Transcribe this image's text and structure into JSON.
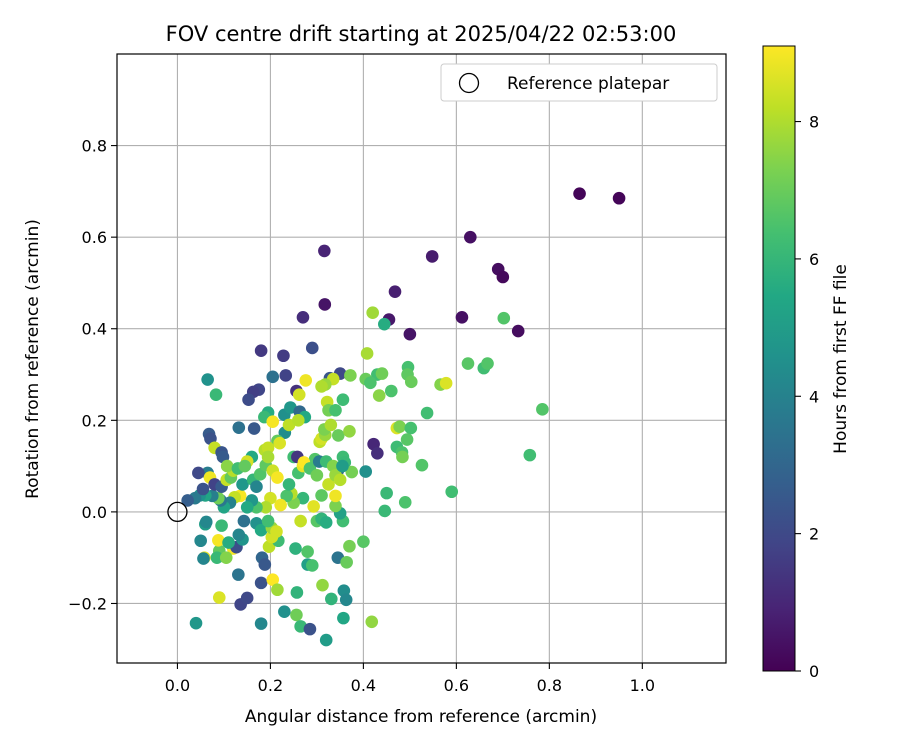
{
  "chart_data": {
    "type": "scatter",
    "title": "FOV centre drift starting at 2025/04/22 02:53:00",
    "xlabel": "Angular distance from reference (arcmin)",
    "ylabel": "Rotation from reference (arcmin)",
    "xlim": [
      -0.13,
      1.18
    ],
    "ylim": [
      -0.33,
      1.0
    ],
    "xticks": [
      0.0,
      0.2,
      0.4,
      0.6,
      0.8,
      1.0
    ],
    "yticks": [
      -0.2,
      0.0,
      0.2,
      0.4,
      0.6,
      0.8
    ],
    "xtick_labels": [
      "0.0",
      "0.2",
      "0.4",
      "0.6",
      "0.8",
      "1.0"
    ],
    "ytick_labels": [
      "−0.2",
      "0.0",
      "0.2",
      "0.4",
      "0.6",
      "0.8"
    ],
    "grid": true,
    "legend": {
      "entries": [
        "Reference platepar"
      ],
      "placement": "top-right"
    },
    "reference_point": {
      "x": 0.0,
      "y": 0.0,
      "label": "Reference platepar"
    },
    "colorbar": {
      "label": "Hours from first FF file",
      "colormap": "viridis",
      "range": [
        0,
        9.1
      ],
      "ticks": [
        0,
        2,
        4,
        6,
        8
      ],
      "tick_labels": [
        "0",
        "2",
        "4",
        "6",
        "8"
      ]
    },
    "points": [
      {
        "x": 0.95,
        "y": 0.685,
        "c": 0.1
      },
      {
        "x": 0.865,
        "y": 0.695,
        "c": 0.1
      },
      {
        "x": 0.63,
        "y": 0.6,
        "c": 0.4
      },
      {
        "x": 0.548,
        "y": 0.558,
        "c": 0.7
      },
      {
        "x": 0.316,
        "y": 0.57,
        "c": 0.9
      },
      {
        "x": 0.69,
        "y": 0.53,
        "c": 0.3
      },
      {
        "x": 0.7,
        "y": 0.513,
        "c": 0.2
      },
      {
        "x": 0.468,
        "y": 0.481,
        "c": 0.8
      },
      {
        "x": 0.317,
        "y": 0.453,
        "c": 0.5
      },
      {
        "x": 0.612,
        "y": 0.425,
        "c": 0.4
      },
      {
        "x": 0.733,
        "y": 0.395,
        "c": 0.3
      },
      {
        "x": 0.5,
        "y": 0.388,
        "c": 0.5
      },
      {
        "x": 0.27,
        "y": 0.425,
        "c": 1.2
      },
      {
        "x": 0.455,
        "y": 0.42,
        "c": 0.6
      },
      {
        "x": 0.42,
        "y": 0.435,
        "c": 7.8
      },
      {
        "x": 0.445,
        "y": 0.41,
        "c": 5.6
      },
      {
        "x": 0.702,
        "y": 0.423,
        "c": 6.6
      },
      {
        "x": 0.18,
        "y": 0.352,
        "c": 1.5
      },
      {
        "x": 0.228,
        "y": 0.341,
        "c": 1.6
      },
      {
        "x": 0.29,
        "y": 0.358,
        "c": 2.2
      },
      {
        "x": 0.35,
        "y": 0.302,
        "c": 2.0
      },
      {
        "x": 0.328,
        "y": 0.292,
        "c": 2.4
      },
      {
        "x": 0.205,
        "y": 0.295,
        "c": 3.4
      },
      {
        "x": 0.233,
        "y": 0.298,
        "c": 1.8
      },
      {
        "x": 0.175,
        "y": 0.267,
        "c": 1.9
      },
      {
        "x": 0.163,
        "y": 0.262,
        "c": 1.7
      },
      {
        "x": 0.153,
        "y": 0.245,
        "c": 2.1
      },
      {
        "x": 0.065,
        "y": 0.289,
        "c": 4.6
      },
      {
        "x": 0.083,
        "y": 0.256,
        "c": 6.1
      },
      {
        "x": 0.256,
        "y": 0.264,
        "c": 1.3
      },
      {
        "x": 0.262,
        "y": 0.256,
        "c": 8.5
      },
      {
        "x": 0.276,
        "y": 0.287,
        "c": 8.9
      },
      {
        "x": 0.335,
        "y": 0.29,
        "c": 8.3
      },
      {
        "x": 0.318,
        "y": 0.278,
        "c": 7.7
      },
      {
        "x": 0.31,
        "y": 0.274,
        "c": 8.0
      },
      {
        "x": 0.322,
        "y": 0.24,
        "c": 8.3
      },
      {
        "x": 0.325,
        "y": 0.222,
        "c": 7.2
      },
      {
        "x": 0.408,
        "y": 0.346,
        "c": 7.9
      },
      {
        "x": 0.496,
        "y": 0.316,
        "c": 6.4
      },
      {
        "x": 0.495,
        "y": 0.3,
        "c": 6.8
      },
      {
        "x": 0.372,
        "y": 0.298,
        "c": 7.3
      },
      {
        "x": 0.405,
        "y": 0.29,
        "c": 7.0
      },
      {
        "x": 0.43,
        "y": 0.3,
        "c": 6.3
      },
      {
        "x": 0.44,
        "y": 0.302,
        "c": 7.1
      },
      {
        "x": 0.415,
        "y": 0.282,
        "c": 6.5
      },
      {
        "x": 0.503,
        "y": 0.284,
        "c": 7.0
      },
      {
        "x": 0.46,
        "y": 0.264,
        "c": 6.5
      },
      {
        "x": 0.434,
        "y": 0.254,
        "c": 7.5
      },
      {
        "x": 0.566,
        "y": 0.278,
        "c": 7.4
      },
      {
        "x": 0.578,
        "y": 0.281,
        "c": 8.6
      },
      {
        "x": 0.625,
        "y": 0.324,
        "c": 6.7
      },
      {
        "x": 0.659,
        "y": 0.314,
        "c": 6.3
      },
      {
        "x": 0.667,
        "y": 0.324,
        "c": 6.6
      },
      {
        "x": 0.785,
        "y": 0.224,
        "c": 6.6
      },
      {
        "x": 0.537,
        "y": 0.216,
        "c": 6.3
      },
      {
        "x": 0.356,
        "y": 0.245,
        "c": 6.2
      },
      {
        "x": 0.34,
        "y": 0.222,
        "c": 6.4
      },
      {
        "x": 0.195,
        "y": 0.217,
        "c": 5.6
      },
      {
        "x": 0.187,
        "y": 0.207,
        "c": 6.1
      },
      {
        "x": 0.23,
        "y": 0.212,
        "c": 4.5
      },
      {
        "x": 0.243,
        "y": 0.228,
        "c": 4.8
      },
      {
        "x": 0.263,
        "y": 0.219,
        "c": 3.1
      },
      {
        "x": 0.274,
        "y": 0.207,
        "c": 5.5
      },
      {
        "x": 0.205,
        "y": 0.197,
        "c": 9.0
      },
      {
        "x": 0.231,
        "y": 0.173,
        "c": 4.4
      },
      {
        "x": 0.165,
        "y": 0.182,
        "c": 2.5
      },
      {
        "x": 0.132,
        "y": 0.184,
        "c": 3.4
      },
      {
        "x": 0.068,
        "y": 0.17,
        "c": 2.6
      },
      {
        "x": 0.071,
        "y": 0.16,
        "c": 2.3
      },
      {
        "x": 0.08,
        "y": 0.14,
        "c": 8.3
      },
      {
        "x": 0.095,
        "y": 0.13,
        "c": 2.4
      },
      {
        "x": 0.098,
        "y": 0.12,
        "c": 2.6
      },
      {
        "x": 0.188,
        "y": 0.135,
        "c": 8.1
      },
      {
        "x": 0.215,
        "y": 0.155,
        "c": 6.9
      },
      {
        "x": 0.195,
        "y": 0.14,
        "c": 8.3
      },
      {
        "x": 0.25,
        "y": 0.12,
        "c": 6.3
      },
      {
        "x": 0.258,
        "y": 0.12,
        "c": 1.4
      },
      {
        "x": 0.296,
        "y": 0.115,
        "c": 6.6
      },
      {
        "x": 0.306,
        "y": 0.153,
        "c": 8.2
      },
      {
        "x": 0.31,
        "y": 0.16,
        "c": 8.5
      },
      {
        "x": 0.318,
        "y": 0.168,
        "c": 7.7
      },
      {
        "x": 0.316,
        "y": 0.18,
        "c": 7.3
      },
      {
        "x": 0.33,
        "y": 0.19,
        "c": 8.0
      },
      {
        "x": 0.346,
        "y": 0.167,
        "c": 7.0
      },
      {
        "x": 0.37,
        "y": 0.176,
        "c": 7.6
      },
      {
        "x": 0.356,
        "y": 0.12,
        "c": 6.2
      },
      {
        "x": 0.36,
        "y": 0.108,
        "c": 6.1
      },
      {
        "x": 0.345,
        "y": 0.09,
        "c": 3.1
      },
      {
        "x": 0.375,
        "y": 0.087,
        "c": 7.2
      },
      {
        "x": 0.405,
        "y": 0.088,
        "c": 4.5
      },
      {
        "x": 0.422,
        "y": 0.148,
        "c": 1.0
      },
      {
        "x": 0.43,
        "y": 0.128,
        "c": 1.2
      },
      {
        "x": 0.472,
        "y": 0.183,
        "c": 8.6
      },
      {
        "x": 0.478,
        "y": 0.186,
        "c": 7.3
      },
      {
        "x": 0.502,
        "y": 0.183,
        "c": 6.4
      },
      {
        "x": 0.494,
        "y": 0.158,
        "c": 6.7
      },
      {
        "x": 0.472,
        "y": 0.142,
        "c": 6.2
      },
      {
        "x": 0.483,
        "y": 0.13,
        "c": 6.5
      },
      {
        "x": 0.484,
        "y": 0.12,
        "c": 7.2
      },
      {
        "x": 0.526,
        "y": 0.102,
        "c": 6.6
      },
      {
        "x": 0.758,
        "y": 0.124,
        "c": 6.3
      },
      {
        "x": 0.59,
        "y": 0.044,
        "c": 6.3
      },
      {
        "x": 0.49,
        "y": 0.021,
        "c": 6.5
      },
      {
        "x": 0.45,
        "y": 0.041,
        "c": 6.1
      },
      {
        "x": 0.446,
        "y": 0.002,
        "c": 6.1
      },
      {
        "x": 0.4,
        "y": -0.065,
        "c": 6.7
      },
      {
        "x": 0.37,
        "y": -0.075,
        "c": 7.2
      },
      {
        "x": 0.345,
        "y": -0.1,
        "c": 3.5
      },
      {
        "x": 0.364,
        "y": -0.11,
        "c": 7.0
      },
      {
        "x": 0.358,
        "y": -0.172,
        "c": 4.4
      },
      {
        "x": 0.363,
        "y": -0.192,
        "c": 4.2
      },
      {
        "x": 0.331,
        "y": -0.19,
        "c": 5.9
      },
      {
        "x": 0.312,
        "y": -0.16,
        "c": 7.6
      },
      {
        "x": 0.28,
        "y": -0.115,
        "c": 5.1
      },
      {
        "x": 0.29,
        "y": -0.117,
        "c": 6.4
      },
      {
        "x": 0.28,
        "y": -0.087,
        "c": 6.6
      },
      {
        "x": 0.254,
        "y": -0.08,
        "c": 5.8
      },
      {
        "x": 0.257,
        "y": -0.176,
        "c": 5.9
      },
      {
        "x": 0.23,
        "y": -0.218,
        "c": 4.5
      },
      {
        "x": 0.256,
        "y": -0.225,
        "c": 7.1
      },
      {
        "x": 0.265,
        "y": -0.25,
        "c": 6.1
      },
      {
        "x": 0.285,
        "y": -0.256,
        "c": 2.3
      },
      {
        "x": 0.32,
        "y": -0.28,
        "c": 5.0
      },
      {
        "x": 0.357,
        "y": -0.232,
        "c": 5.4
      },
      {
        "x": 0.418,
        "y": -0.24,
        "c": 7.6
      },
      {
        "x": 0.04,
        "y": -0.243,
        "c": 4.8
      },
      {
        "x": 0.18,
        "y": -0.244,
        "c": 4.2
      },
      {
        "x": 0.136,
        "y": -0.202,
        "c": 1.9
      },
      {
        "x": 0.15,
        "y": -0.188,
        "c": 2.0
      },
      {
        "x": 0.09,
        "y": -0.187,
        "c": 8.6
      },
      {
        "x": 0.18,
        "y": -0.155,
        "c": 2.3
      },
      {
        "x": 0.205,
        "y": -0.148,
        "c": 9.1
      },
      {
        "x": 0.215,
        "y": -0.17,
        "c": 7.8
      },
      {
        "x": 0.131,
        "y": -0.137,
        "c": 3.5
      },
      {
        "x": 0.058,
        "y": -0.1,
        "c": 8.8
      },
      {
        "x": 0.056,
        "y": -0.102,
        "c": 4.1
      },
      {
        "x": 0.12,
        "y": -0.08,
        "c": 9.0
      },
      {
        "x": 0.127,
        "y": -0.077,
        "c": 2.2
      },
      {
        "x": 0.182,
        "y": -0.1,
        "c": 3.0
      },
      {
        "x": 0.188,
        "y": -0.115,
        "c": 2.5
      },
      {
        "x": 0.197,
        "y": -0.076,
        "c": 8.2
      },
      {
        "x": 0.217,
        "y": -0.063,
        "c": 6.2
      },
      {
        "x": 0.203,
        "y": -0.055,
        "c": 8.5
      },
      {
        "x": 0.09,
        "y": -0.085,
        "c": 6.9
      },
      {
        "x": 0.085,
        "y": -0.1,
        "c": 6.1
      },
      {
        "x": 0.105,
        "y": -0.1,
        "c": 7.4
      },
      {
        "x": 0.05,
        "y": -0.063,
        "c": 4.2
      },
      {
        "x": 0.088,
        "y": -0.062,
        "c": 9.0
      },
      {
        "x": 0.11,
        "y": -0.067,
        "c": 5.6
      },
      {
        "x": 0.14,
        "y": -0.06,
        "c": 4.7
      },
      {
        "x": 0.06,
        "y": -0.027,
        "c": 5.0
      },
      {
        "x": 0.062,
        "y": -0.022,
        "c": 4.2
      },
      {
        "x": 0.095,
        "y": -0.03,
        "c": 6.1
      },
      {
        "x": 0.132,
        "y": -0.05,
        "c": 4.1
      },
      {
        "x": 0.143,
        "y": -0.02,
        "c": 3.4
      },
      {
        "x": 0.17,
        "y": -0.025,
        "c": 4.6
      },
      {
        "x": 0.18,
        "y": -0.04,
        "c": 5.5
      },
      {
        "x": 0.203,
        "y": -0.035,
        "c": 7.7
      },
      {
        "x": 0.213,
        "y": -0.043,
        "c": 8.5
      },
      {
        "x": 0.195,
        "y": -0.02,
        "c": 6.3
      },
      {
        "x": 0.265,
        "y": -0.02,
        "c": 8.3
      },
      {
        "x": 0.3,
        "y": -0.02,
        "c": 6.7
      },
      {
        "x": 0.31,
        "y": -0.015,
        "c": 5.9
      },
      {
        "x": 0.32,
        "y": -0.023,
        "c": 5.6
      },
      {
        "x": 0.356,
        "y": -0.02,
        "c": 6.3
      },
      {
        "x": 0.35,
        "y": -0.003,
        "c": 5.2
      },
      {
        "x": 0.34,
        "y": 0.013,
        "c": 7.3
      },
      {
        "x": 0.31,
        "y": 0.036,
        "c": 6.8
      },
      {
        "x": 0.325,
        "y": 0.06,
        "c": 8.3
      },
      {
        "x": 0.34,
        "y": 0.035,
        "c": 8.9
      },
      {
        "x": 0.293,
        "y": 0.012,
        "c": 8.7
      },
      {
        "x": 0.27,
        "y": 0.03,
        "c": 6.0
      },
      {
        "x": 0.25,
        "y": 0.02,
        "c": 7.3
      },
      {
        "x": 0.245,
        "y": 0.04,
        "c": 8.1
      },
      {
        "x": 0.235,
        "y": 0.035,
        "c": 6.5
      },
      {
        "x": 0.222,
        "y": 0.015,
        "c": 8.9
      },
      {
        "x": 0.2,
        "y": 0.03,
        "c": 8.5
      },
      {
        "x": 0.19,
        "y": 0.01,
        "c": 8.0
      },
      {
        "x": 0.17,
        "y": 0.01,
        "c": 6.5
      },
      {
        "x": 0.16,
        "y": 0.025,
        "c": 4.8
      },
      {
        "x": 0.15,
        "y": 0.01,
        "c": 5.5
      },
      {
        "x": 0.135,
        "y": 0.035,
        "c": 9.0
      },
      {
        "x": 0.123,
        "y": 0.032,
        "c": 8.3
      },
      {
        "x": 0.113,
        "y": 0.02,
        "c": 4.0
      },
      {
        "x": 0.1,
        "y": 0.01,
        "c": 5.3
      },
      {
        "x": 0.093,
        "y": 0.025,
        "c": 3.6
      },
      {
        "x": 0.088,
        "y": 0.03,
        "c": 7.1
      },
      {
        "x": 0.075,
        "y": 0.035,
        "c": 3.9
      },
      {
        "x": 0.06,
        "y": 0.036,
        "c": 5.3
      },
      {
        "x": 0.048,
        "y": 0.036,
        "c": 4.6
      },
      {
        "x": 0.038,
        "y": 0.03,
        "c": 3.7
      },
      {
        "x": 0.022,
        "y": 0.025,
        "c": 2.7
      },
      {
        "x": 0.055,
        "y": 0.05,
        "c": 2.3
      },
      {
        "x": 0.065,
        "y": 0.085,
        "c": 3.8
      },
      {
        "x": 0.045,
        "y": 0.085,
        "c": 2.0
      },
      {
        "x": 0.07,
        "y": 0.075,
        "c": 8.9
      },
      {
        "x": 0.08,
        "y": 0.06,
        "c": 1.8
      },
      {
        "x": 0.095,
        "y": 0.055,
        "c": 2.6
      },
      {
        "x": 0.106,
        "y": 0.07,
        "c": 8.3
      },
      {
        "x": 0.115,
        "y": 0.075,
        "c": 6.9
      },
      {
        "x": 0.12,
        "y": 0.09,
        "c": 8.1
      },
      {
        "x": 0.107,
        "y": 0.1,
        "c": 7.5
      },
      {
        "x": 0.13,
        "y": 0.095,
        "c": 6.3
      },
      {
        "x": 0.14,
        "y": 0.06,
        "c": 4.8
      },
      {
        "x": 0.163,
        "y": 0.07,
        "c": 6.0
      },
      {
        "x": 0.17,
        "y": 0.055,
        "c": 4.1
      },
      {
        "x": 0.178,
        "y": 0.082,
        "c": 6.6
      },
      {
        "x": 0.19,
        "y": 0.102,
        "c": 6.8
      },
      {
        "x": 0.195,
        "y": 0.12,
        "c": 7.9
      },
      {
        "x": 0.205,
        "y": 0.09,
        "c": 8.4
      },
      {
        "x": 0.215,
        "y": 0.075,
        "c": 9.0
      },
      {
        "x": 0.24,
        "y": 0.06,
        "c": 6.0
      },
      {
        "x": 0.26,
        "y": 0.085,
        "c": 6.4
      },
      {
        "x": 0.27,
        "y": 0.1,
        "c": 8.8
      },
      {
        "x": 0.272,
        "y": 0.108,
        "c": 9.1
      },
      {
        "x": 0.285,
        "y": 0.095,
        "c": 6.5
      },
      {
        "x": 0.3,
        "y": 0.08,
        "c": 7.1
      },
      {
        "x": 0.305,
        "y": 0.11,
        "c": 3.8
      },
      {
        "x": 0.32,
        "y": 0.11,
        "c": 6.2
      },
      {
        "x": 0.335,
        "y": 0.1,
        "c": 7.4
      },
      {
        "x": 0.34,
        "y": 0.08,
        "c": 7.7
      },
      {
        "x": 0.35,
        "y": 0.07,
        "c": 8.1
      },
      {
        "x": 0.355,
        "y": 0.1,
        "c": 5.0
      },
      {
        "x": 0.22,
        "y": 0.15,
        "c": 8.6
      },
      {
        "x": 0.24,
        "y": 0.19,
        "c": 8.2
      },
      {
        "x": 0.26,
        "y": 0.2,
        "c": 8.1
      },
      {
        "x": 0.16,
        "y": 0.12,
        "c": 5.5
      },
      {
        "x": 0.15,
        "y": 0.11,
        "c": 8.5
      },
      {
        "x": 0.145,
        "y": 0.1,
        "c": 6.9
      }
    ]
  }
}
